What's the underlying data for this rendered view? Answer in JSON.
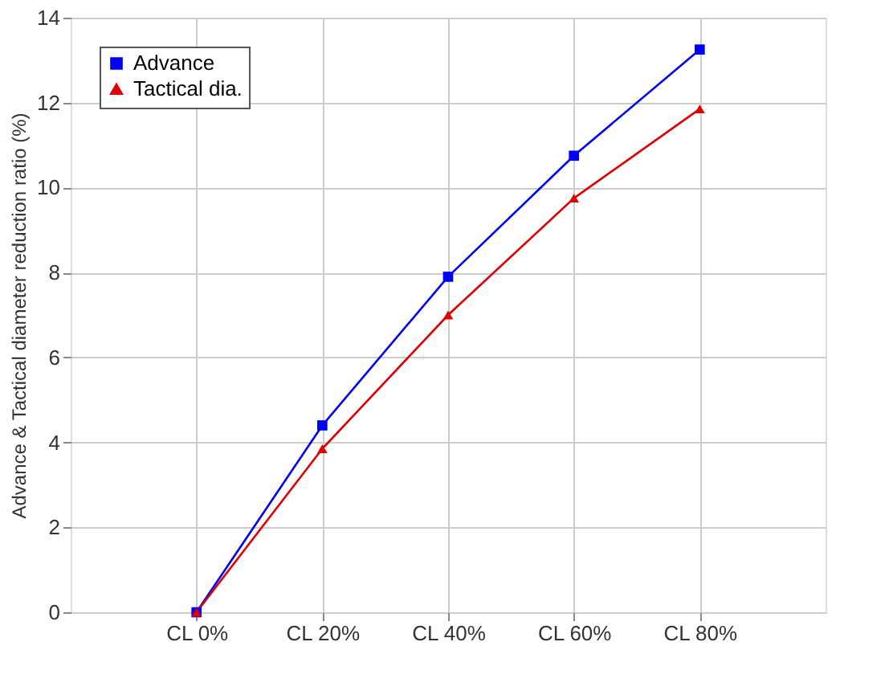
{
  "chart_data": {
    "type": "line",
    "ylabel": "Advance & Tactical diameter reduction ratio (%)",
    "categories": [
      "CL 0%",
      "CL 20%",
      "CL 40%",
      "CL 60%",
      "CL 80%"
    ],
    "series": [
      {
        "name": "Advance",
        "color": "#0000ff",
        "marker": "square",
        "values": [
          0,
          4.4,
          7.9,
          10.75,
          13.25
        ]
      },
      {
        "name": "Tactical dia.",
        "color": "#e00000",
        "marker": "triangle",
        "values": [
          0,
          3.85,
          7.0,
          9.75,
          11.85
        ]
      }
    ],
    "ylim": [
      0,
      14
    ],
    "yticks": [
      0,
      2,
      4,
      6,
      8,
      10,
      12,
      14
    ],
    "grid": true,
    "legend": "top left",
    "line_style": "solid"
  }
}
